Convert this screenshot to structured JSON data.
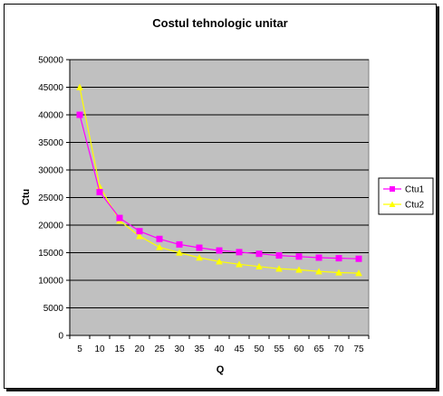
{
  "chart_data": {
    "type": "line",
    "title": "Costul tehnologic unitar",
    "xlabel": "Q",
    "ylabel": "Ctu",
    "ylim": [
      0,
      50000
    ],
    "yticks": [
      "0",
      "5000",
      "10000",
      "15000",
      "20000",
      "25000",
      "30000",
      "35000",
      "40000",
      "45000",
      "50000"
    ],
    "x": [
      5,
      10,
      15,
      20,
      25,
      30,
      35,
      40,
      45,
      50,
      55,
      60,
      65,
      70,
      75
    ],
    "xtick_labels": [
      "5",
      "10",
      "15",
      "20",
      "25",
      "30",
      "35",
      "40",
      "45",
      "50",
      "55",
      "60",
      "65",
      "70",
      "75"
    ],
    "grid": "horizontal",
    "plot_background": "#c0c0c0",
    "legend_position": "right",
    "series": [
      {
        "name": "Ctu1",
        "color": "#ff00ff",
        "marker": "square",
        "values": [
          40000,
          26000,
          21300,
          18900,
          17500,
          16500,
          15900,
          15400,
          15100,
          14800,
          14500,
          14300,
          14100,
          14000,
          13900
        ]
      },
      {
        "name": "Ctu2",
        "color": "#ffff00",
        "marker": "triangle",
        "values": [
          45000,
          27000,
          20800,
          18000,
          16000,
          15000,
          14100,
          13400,
          12900,
          12500,
          12100,
          11900,
          11600,
          11400,
          11300
        ]
      }
    ]
  }
}
